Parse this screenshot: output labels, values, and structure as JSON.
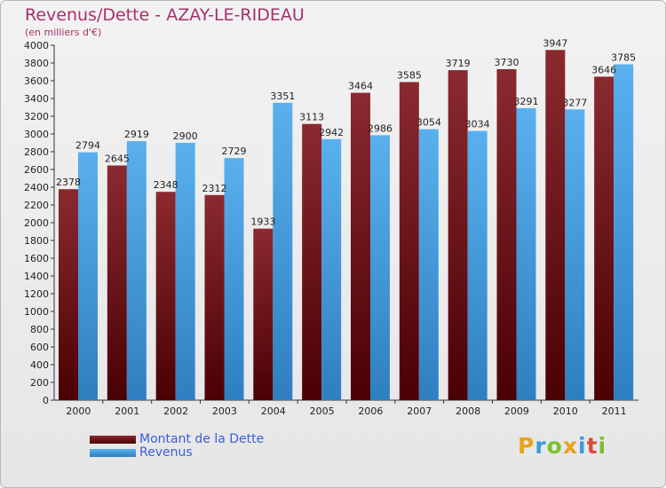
{
  "title": "Revenus/Dette - AZAY-LE-RIDEAU",
  "subtitle": "(en milliers d'€)",
  "logo": "Proxiti",
  "colors": {
    "dette": "#7a1f24",
    "dette_dark": "#4a0004",
    "revenus": "#4da6e8",
    "revenus_dark": "#2f80c2",
    "title": "#a8306a",
    "legend_text": "#3b5fd9"
  },
  "chart_data": {
    "type": "bar",
    "title": "Revenus/Dette - AZAY-LE-RIDEAU",
    "subtitle": "(en milliers d'€)",
    "categories": [
      "2000",
      "2001",
      "2002",
      "2003",
      "2004",
      "2005",
      "2006",
      "2007",
      "2008",
      "2009",
      "2010",
      "2011"
    ],
    "series": [
      {
        "name": "Montant de la Dette",
        "values": [
          2378,
          2645,
          2348,
          2312,
          1933,
          3113,
          3464,
          3585,
          3719,
          3730,
          3947,
          3646
        ]
      },
      {
        "name": "Revenus",
        "values": [
          2794,
          2919,
          2900,
          2729,
          3351,
          2942,
          2986,
          3054,
          3034,
          3291,
          3277,
          3785
        ]
      }
    ],
    "ylim": [
      0,
      4000
    ],
    "ytick_step": 200,
    "grid": false,
    "legend": "bottom-left"
  }
}
